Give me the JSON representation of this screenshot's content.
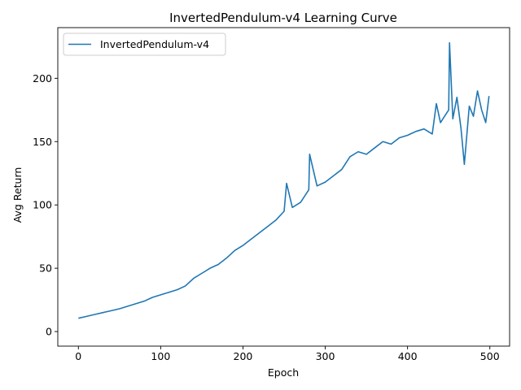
{
  "chart_data": {
    "type": "line",
    "title": "InvertedPendulum-v4 Learning Curve",
    "xlabel": "Epoch",
    "ylabel": "Avg Return",
    "xlim": [
      -25,
      524
    ],
    "ylim": [
      -11.5,
      240
    ],
    "xticks": [
      0,
      100,
      200,
      300,
      400,
      500
    ],
    "yticks": [
      0,
      50,
      100,
      150,
      200
    ],
    "grid": false,
    "legend_position": "top-left",
    "series": [
      {
        "name": "InvertedPendulum-v4",
        "color": "#1f77b4",
        "x": [
          0,
          10,
          20,
          30,
          40,
          50,
          60,
          70,
          80,
          90,
          100,
          110,
          120,
          130,
          140,
          150,
          160,
          170,
          180,
          190,
          200,
          210,
          220,
          230,
          240,
          250,
          253,
          260,
          270,
          280,
          281,
          290,
          300,
          310,
          320,
          330,
          340,
          350,
          360,
          370,
          380,
          390,
          400,
          410,
          420,
          430,
          435,
          440,
          445,
          450,
          451,
          455,
          460,
          465,
          469,
          475,
          480,
          485,
          490,
          495,
          499
        ],
        "values": [
          10.5,
          12,
          13.5,
          15,
          16.5,
          18,
          20,
          22,
          24,
          27,
          29,
          31,
          33,
          36,
          42,
          46,
          50,
          53,
          58,
          64,
          68,
          73,
          78,
          83,
          88,
          95,
          117,
          98,
          102,
          112,
          140,
          115,
          118,
          123,
          128,
          138,
          142,
          140,
          145,
          150,
          148,
          153,
          155,
          158,
          160,
          156,
          180,
          165,
          170,
          175,
          228,
          168,
          185,
          160,
          132,
          178,
          170,
          190,
          175,
          165,
          186
        ]
      }
    ]
  }
}
